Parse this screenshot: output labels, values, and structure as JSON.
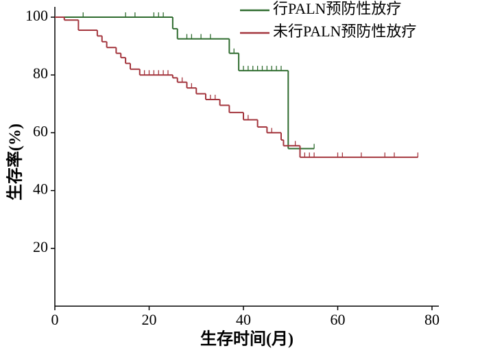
{
  "chart_data": {
    "type": "km",
    "xlabel": "生存时间(月)",
    "ylabel": "生存率(%)",
    "xlim": [
      0,
      80
    ],
    "ylim": [
      0,
      100
    ],
    "xticks": [
      0,
      20,
      40,
      60,
      80
    ],
    "yticks": [
      20,
      40,
      60,
      80,
      100
    ],
    "legend": "upper right",
    "series": [
      {
        "name": "行PALN预防性放疗",
        "color": "#2e6b2e",
        "x": [
          0,
          25,
          26,
          37,
          39,
          49.5,
          55
        ],
        "values": [
          100,
          96,
          92.5,
          87.5,
          81.5,
          54.5,
          54.5
        ],
        "censored": {
          "x": [
            6,
            15,
            17,
            21,
            22,
            23,
            28,
            29,
            31,
            33,
            38,
            40,
            41,
            42,
            43,
            44,
            45,
            46,
            47,
            48,
            55
          ],
          "values": [
            100,
            100,
            100,
            100,
            100,
            100,
            92.5,
            92.5,
            92.5,
            92.5,
            87.5,
            81.5,
            81.5,
            81.5,
            81.5,
            81.5,
            81.5,
            81.5,
            81.5,
            81.5,
            54.5
          ]
        }
      },
      {
        "name": "未行PALN预防性放疗",
        "color": "#a3343c",
        "x": [
          0,
          2,
          5,
          9,
          10,
          11,
          13,
          14,
          15,
          16,
          18,
          25,
          26,
          28,
          30,
          32,
          35,
          37,
          40,
          43,
          45,
          48,
          48.5,
          52,
          77
        ],
        "values": [
          100,
          99,
          95.5,
          93.5,
          91.5,
          89.5,
          87.5,
          86,
          84,
          82,
          80,
          79,
          77.5,
          75.5,
          73.5,
          71.5,
          69.5,
          67,
          64.5,
          62,
          60,
          57.5,
          55.5,
          51.5,
          51.5
        ],
        "censored": {
          "x": [
            10,
            15,
            19,
            20,
            21,
            22,
            23,
            24,
            27,
            29,
            33,
            34,
            35,
            40,
            41,
            45,
            46,
            51,
            53,
            54,
            55,
            60,
            61,
            65,
            70,
            72,
            77
          ],
          "values": [
            91.5,
            84,
            80,
            80,
            80,
            80,
            80,
            80,
            77.5,
            75.5,
            71.5,
            71.5,
            69.5,
            64.5,
            64.5,
            60,
            60,
            55.5,
            51.5,
            51.5,
            51.5,
            51.5,
            51.5,
            51.5,
            51.5,
            51.5,
            51.5
          ]
        }
      }
    ]
  }
}
